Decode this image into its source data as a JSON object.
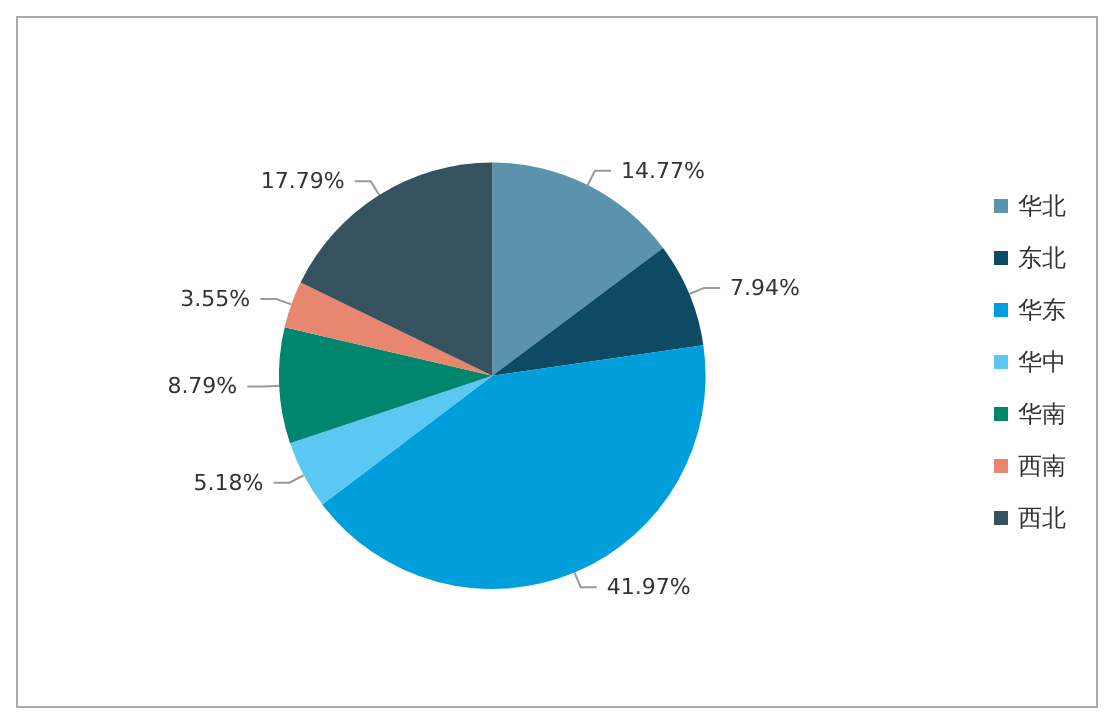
{
  "chart_data": {
    "type": "pie",
    "categories": [
      "华北",
      "东北",
      "华东",
      "华中",
      "华南",
      "西南",
      "西北"
    ],
    "values": [
      14.77,
      7.94,
      41.97,
      5.18,
      8.79,
      3.55,
      17.79
    ],
    "colors": [
      "#5a93ab",
      "#0d4b64",
      "#009fdc",
      "#5bc8f4",
      "#00856f",
      "#e8866f",
      "#36525f"
    ],
    "value_labels": [
      "14.77%",
      "7.94%",
      "41.97%",
      "5.18%",
      "8.79%",
      "3.55%",
      "17.79%"
    ],
    "legend": "right"
  }
}
